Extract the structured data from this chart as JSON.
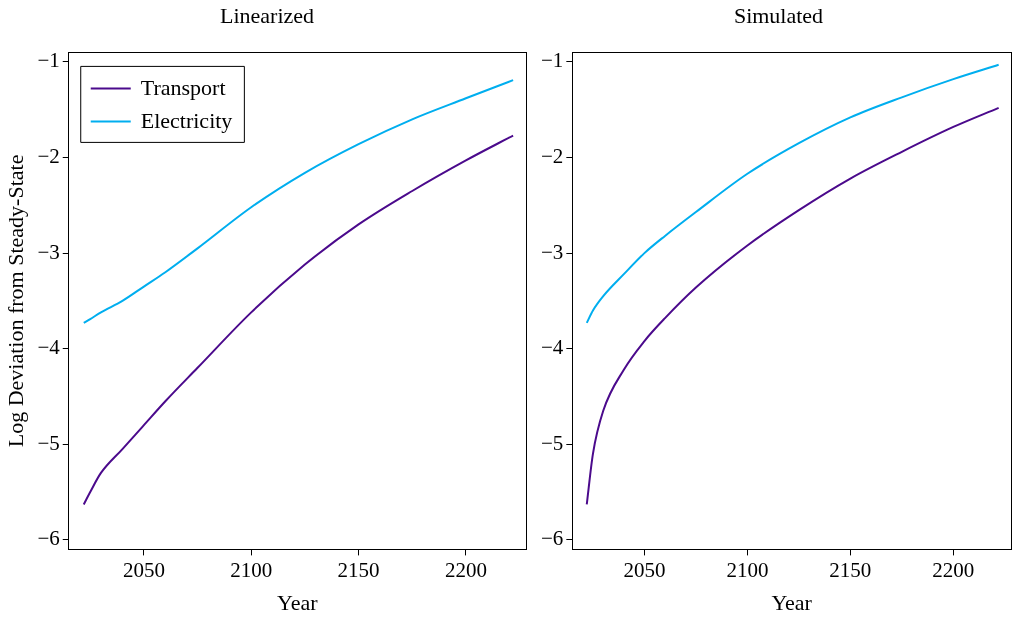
{
  "chart_data": [
    {
      "type": "line",
      "title": "Linearized",
      "xlabel": "Year",
      "ylabel": "Log Deviation from Steady-State",
      "x": [
        2022,
        2025,
        2030,
        2040,
        2050,
        2060,
        2075,
        2100,
        2125,
        2150,
        2175,
        2200,
        2222
      ],
      "series": [
        {
          "name": "Transport",
          "color": "#4b0a8c",
          "values": [
            -5.63,
            -5.5,
            -5.3,
            -5.05,
            -4.8,
            -4.55,
            -4.2,
            -3.62,
            -3.12,
            -2.7,
            -2.35,
            -2.03,
            -1.77
          ]
        },
        {
          "name": "Electricity",
          "color": "#00aeef",
          "values": [
            -3.73,
            -3.69,
            -3.62,
            -3.5,
            -3.35,
            -3.2,
            -2.95,
            -2.52,
            -2.16,
            -1.86,
            -1.6,
            -1.38,
            -1.19
          ]
        }
      ],
      "xlim": [
        2015,
        2228
      ],
      "xticks": [
        2050,
        2100,
        2150,
        2200
      ],
      "ylim": [
        -6.1,
        -0.9
      ],
      "yticks": [
        {
          "value": -6,
          "label": "−6"
        },
        {
          "value": -5,
          "label": "−5"
        },
        {
          "value": -4,
          "label": "−4"
        },
        {
          "value": -3,
          "label": "−3"
        },
        {
          "value": -2,
          "label": "−2"
        },
        {
          "value": -1,
          "label": "−1"
        }
      ],
      "grid": false,
      "legend": "top left",
      "marker": "none",
      "line_style": "solid"
    },
    {
      "type": "line",
      "title": "Simulated",
      "xlabel": "Year",
      "x": [
        2022,
        2025,
        2030,
        2040,
        2050,
        2060,
        2075,
        2100,
        2125,
        2150,
        2175,
        2200,
        2222
      ],
      "series": [
        {
          "color": "#4b0a8c",
          "values": [
            -5.63,
            -5.1,
            -4.65,
            -4.22,
            -3.92,
            -3.68,
            -3.36,
            -2.92,
            -2.55,
            -2.22,
            -1.94,
            -1.68,
            -1.48
          ]
        },
        {
          "color": "#00aeef",
          "values": [
            -3.73,
            -3.6,
            -3.45,
            -3.22,
            -3.0,
            -2.82,
            -2.57,
            -2.17,
            -1.85,
            -1.58,
            -1.37,
            -1.18,
            -1.03
          ]
        }
      ],
      "xlim": [
        2015,
        2228
      ],
      "xticks": [
        2050,
        2100,
        2150,
        2200
      ],
      "ylim": [
        -6.1,
        -0.9
      ],
      "yticks": [
        {
          "value": -6,
          "label": "−6"
        },
        {
          "value": -5,
          "label": "−5"
        },
        {
          "value": -4,
          "label": "−4"
        },
        {
          "value": -3,
          "label": "−3"
        },
        {
          "value": -2,
          "label": "−2"
        },
        {
          "value": -1,
          "label": "−1"
        }
      ],
      "grid": false,
      "legend": false,
      "marker": "none",
      "line_style": "solid"
    }
  ]
}
